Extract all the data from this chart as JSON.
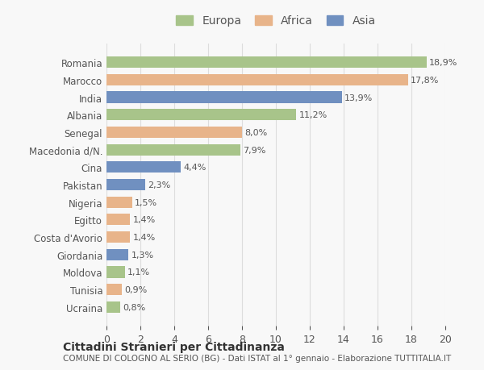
{
  "categories": [
    "Romania",
    "Marocco",
    "India",
    "Albania",
    "Senegal",
    "Macedonia d/N.",
    "Cina",
    "Pakistan",
    "Nigeria",
    "Egitto",
    "Costa d'Avorio",
    "Giordania",
    "Moldova",
    "Tunisia",
    "Ucraina"
  ],
  "values": [
    18.9,
    17.8,
    13.9,
    11.2,
    8.0,
    7.9,
    4.4,
    2.3,
    1.5,
    1.4,
    1.4,
    1.3,
    1.1,
    0.9,
    0.8
  ],
  "labels": [
    "18,9%",
    "17,8%",
    "13,9%",
    "11,2%",
    "8,0%",
    "7,9%",
    "4,4%",
    "2,3%",
    "1,5%",
    "1,4%",
    "1,4%",
    "1,3%",
    "1,1%",
    "0,9%",
    "0,8%"
  ],
  "colors": [
    "#a8c48a",
    "#e8b48a",
    "#7090c0",
    "#a8c48a",
    "#e8b48a",
    "#a8c48a",
    "#7090c0",
    "#7090c0",
    "#e8b48a",
    "#e8b48a",
    "#e8b48a",
    "#7090c0",
    "#a8c48a",
    "#e8b48a",
    "#a8c48a"
  ],
  "continent": [
    "Europa",
    "Africa",
    "Asia",
    "Europa",
    "Africa",
    "Europa",
    "Asia",
    "Asia",
    "Africa",
    "Africa",
    "Africa",
    "Asia",
    "Europa",
    "Africa",
    "Europa"
  ],
  "legend_labels": [
    "Europa",
    "Africa",
    "Asia"
  ],
  "legend_colors": [
    "#a8c48a",
    "#e8b48a",
    "#7090c0"
  ],
  "xlim": [
    0,
    20
  ],
  "xticks": [
    0,
    2,
    4,
    6,
    8,
    10,
    12,
    14,
    16,
    18,
    20
  ],
  "title": "Cittadini Stranieri per Cittadinanza",
  "subtitle": "COMUNE DI COLOGNO AL SERIO (BG) - Dati ISTAT al 1° gennaio - Elaborazione TUTTITALIA.IT",
  "bg_color": "#f8f8f8",
  "bar_height": 0.65,
  "grid_color": "#dddddd",
  "font_color": "#555555"
}
